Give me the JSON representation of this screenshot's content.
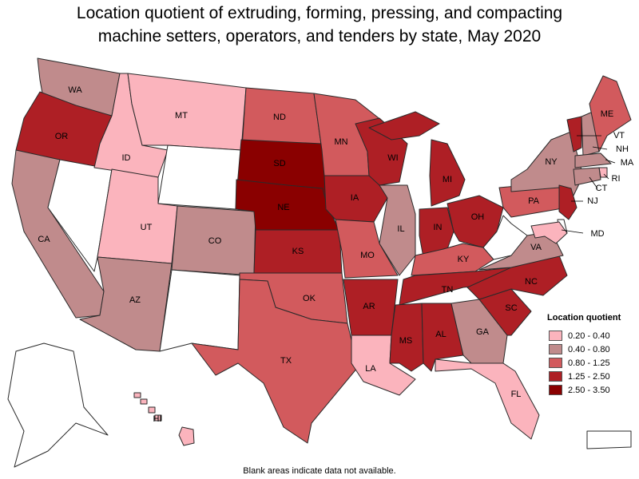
{
  "title": {
    "line1": "Location quotient of extruding, forming, pressing, and compacting",
    "line2": "machine setters, operators, and tenders by state, May 2020"
  },
  "legend": {
    "title": "Location quotient",
    "items": [
      {
        "label": "0.20 - 0.40",
        "color": "#fbb4bd"
      },
      {
        "label": "0.40 - 0.80",
        "color": "#c08b8c"
      },
      {
        "label": "0.80 - 1.25",
        "color": "#d25a5d"
      },
      {
        "label": "1.25 - 2.50",
        "color": "#ae1f25"
      },
      {
        "label": "2.50 - 3.50",
        "color": "#8a0000"
      }
    ]
  },
  "footnote": "Blank areas indicate data not available.",
  "chart_data": {
    "type": "choropleth",
    "legend_placement": "bottom-right",
    "classes": [
      "0.20 - 0.40",
      "0.40 - 0.80",
      "0.80 - 1.25",
      "1.25 - 2.50",
      "2.50 - 3.50"
    ],
    "states": {
      "WA": "0.40 - 0.80",
      "OR": "1.25 - 2.50",
      "CA": "0.40 - 0.80",
      "NV": null,
      "ID": "0.20 - 0.40",
      "MT": "0.20 - 0.40",
      "WY": null,
      "UT": "0.20 - 0.40",
      "AZ": "0.40 - 0.80",
      "CO": "0.40 - 0.80",
      "NM": null,
      "ND": "0.80 - 1.25",
      "SD": "2.50 - 3.50",
      "NE": "2.50 - 3.50",
      "KS": "1.25 - 2.50",
      "OK": "0.80 - 1.25",
      "TX": "0.80 - 1.25",
      "MN": "0.80 - 1.25",
      "IA": "1.25 - 2.50",
      "MO": "0.80 - 1.25",
      "AR": "1.25 - 2.50",
      "LA": "0.20 - 0.40",
      "WI": "1.25 - 2.50",
      "IL": "0.40 - 0.80",
      "MI": "1.25 - 2.50",
      "IN": "1.25 - 2.50",
      "OH": "1.25 - 2.50",
      "KY": "0.80 - 1.25",
      "TN": "1.25 - 2.50",
      "MS": "1.25 - 2.50",
      "AL": "1.25 - 2.50",
      "GA": "0.40 - 0.80",
      "FL": "0.20 - 0.40",
      "SC": "1.25 - 2.50",
      "NC": "1.25 - 2.50",
      "VA": "0.40 - 0.80",
      "WV": null,
      "PA": "0.80 - 1.25",
      "NY": "0.40 - 0.80",
      "VT": "1.25 - 2.50",
      "NH": "0.40 - 0.80",
      "ME": "0.80 - 1.25",
      "MA": "0.40 - 0.80",
      "RI": "0.20 - 0.40",
      "CT": "0.40 - 0.80",
      "NJ": "1.25 - 2.50",
      "DE": null,
      "MD": "0.20 - 0.40",
      "AK": null,
      "HI": "0.20 - 0.40",
      "PR": null
    }
  }
}
